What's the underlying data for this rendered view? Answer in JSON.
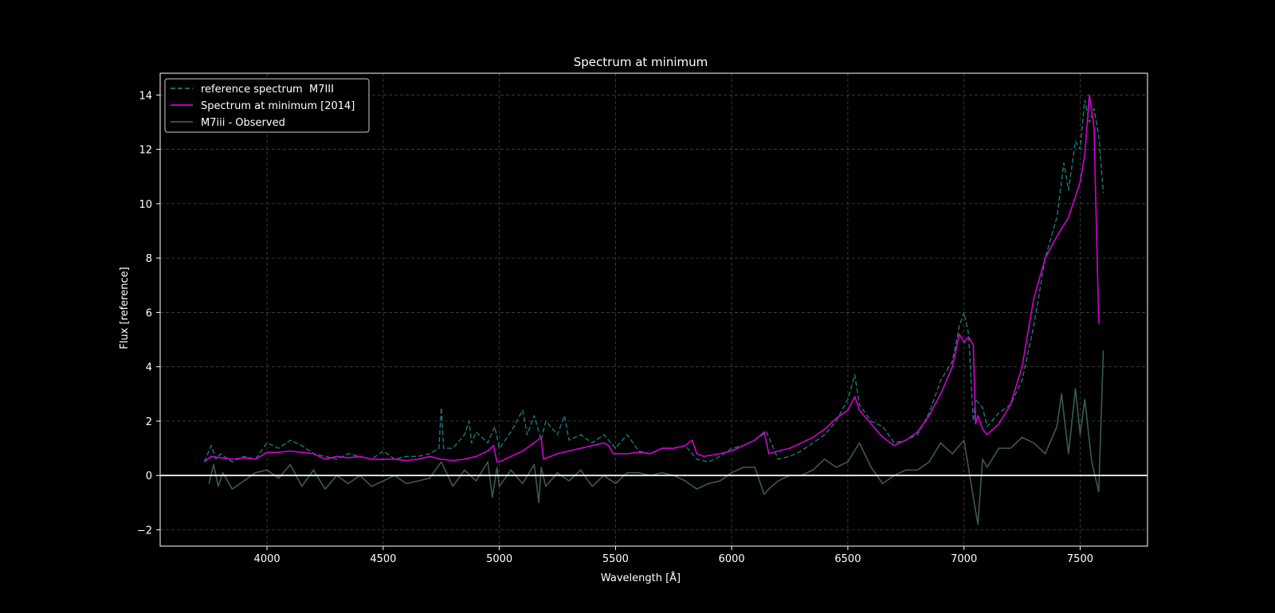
{
  "chart_data": {
    "type": "line",
    "title": "Spectrum at minimum",
    "xlabel": "Wavelength [Å]",
    "ylabel": "Flux [reference]",
    "xlim": [
      3540,
      7790
    ],
    "ylim": [
      -2.6,
      14.8
    ],
    "xticks": [
      4000,
      4500,
      5000,
      5500,
      6000,
      6500,
      7000,
      7500
    ],
    "yticks": [
      -2,
      0,
      2,
      4,
      6,
      8,
      10,
      12,
      14
    ],
    "grid": true,
    "legend_position": "top-left",
    "background": "#000000",
    "zero_line": 0,
    "series": [
      {
        "name": "reference spectrum  M7III",
        "color": "#1a7a7a",
        "style": "dashed",
        "x": [
          3730,
          3760,
          3780,
          3800,
          3850,
          3900,
          3950,
          4000,
          4050,
          4100,
          4150,
          4200,
          4250,
          4300,
          4350,
          4400,
          4450,
          4500,
          4550,
          4600,
          4650,
          4700,
          4740,
          4750,
          4760,
          4800,
          4850,
          4870,
          4880,
          4900,
          4950,
          4980,
          5000,
          5050,
          5100,
          5120,
          5150,
          5180,
          5200,
          5250,
          5280,
          5300,
          5350,
          5400,
          5450,
          5500,
          5550,
          5600,
          5650,
          5700,
          5750,
          5800,
          5850,
          5900,
          5950,
          6000,
          6050,
          6100,
          6150,
          6200,
          6250,
          6300,
          6350,
          6400,
          6450,
          6500,
          6530,
          6550,
          6600,
          6650,
          6700,
          6750,
          6800,
          6850,
          6900,
          6950,
          6980,
          7000,
          7020,
          7040,
          7050,
          7080,
          7100,
          7150,
          7200,
          7250,
          7300,
          7350,
          7400,
          7430,
          7450,
          7480,
          7500,
          7520,
          7540,
          7560,
          7580,
          7600
        ],
        "y": [
          0.5,
          1.1,
          0.6,
          0.8,
          0.5,
          0.7,
          0.6,
          1.2,
          1.0,
          1.3,
          1.1,
          0.8,
          0.7,
          0.6,
          0.8,
          0.7,
          0.6,
          0.9,
          0.6,
          0.7,
          0.7,
          0.8,
          1.0,
          2.5,
          1.0,
          1.0,
          1.5,
          2.0,
          1.2,
          1.6,
          1.2,
          1.8,
          1.0,
          1.6,
          2.4,
          1.5,
          2.2,
          1.3,
          2.0,
          1.5,
          2.2,
          1.3,
          1.5,
          1.2,
          1.5,
          1.0,
          1.5,
          0.9,
          0.8,
          1.0,
          1.0,
          1.1,
          0.6,
          0.5,
          0.7,
          1.0,
          1.1,
          1.3,
          1.6,
          0.6,
          0.7,
          0.9,
          1.2,
          1.5,
          2.0,
          2.8,
          3.7,
          2.6,
          2.0,
          1.8,
          1.2,
          1.3,
          1.5,
          2.3,
          3.5,
          4.2,
          5.5,
          6.0,
          5.2,
          2.0,
          2.8,
          2.5,
          1.8,
          2.3,
          2.6,
          3.5,
          5.5,
          8.0,
          9.5,
          11.5,
          10.5,
          12.3,
          12.0,
          13.8,
          13.0,
          13.5,
          12.5,
          10.4
        ]
      },
      {
        "name": "Spectrum at minimum [2014]",
        "color": "#d400d4",
        "style": "solid",
        "x": [
          3730,
          3760,
          3800,
          3850,
          3900,
          3950,
          4000,
          4050,
          4100,
          4150,
          4200,
          4250,
          4300,
          4350,
          4400,
          4450,
          4500,
          4550,
          4600,
          4650,
          4700,
          4750,
          4800,
          4850,
          4900,
          4950,
          4975,
          4990,
          5000,
          5050,
          5100,
          5150,
          5180,
          5190,
          5250,
          5300,
          5350,
          5400,
          5450,
          5470,
          5490,
          5550,
          5600,
          5650,
          5700,
          5750,
          5800,
          5830,
          5850,
          5880,
          5950,
          6000,
          6050,
          6100,
          6140,
          6160,
          6200,
          6250,
          6300,
          6350,
          6400,
          6450,
          6500,
          6530,
          6550,
          6600,
          6650,
          6700,
          6750,
          6800,
          6850,
          6900,
          6950,
          6980,
          7000,
          7020,
          7040,
          7050,
          7060,
          7080,
          7100,
          7150,
          7200,
          7250,
          7300,
          7350,
          7400,
          7450,
          7500,
          7520,
          7540,
          7560,
          7580
        ],
        "y": [
          0.5,
          0.7,
          0.65,
          0.6,
          0.65,
          0.6,
          0.85,
          0.85,
          0.9,
          0.85,
          0.8,
          0.6,
          0.7,
          0.65,
          0.7,
          0.6,
          0.6,
          0.6,
          0.55,
          0.6,
          0.7,
          0.6,
          0.55,
          0.6,
          0.7,
          0.9,
          1.1,
          0.5,
          0.5,
          0.7,
          0.9,
          1.2,
          1.4,
          0.6,
          0.8,
          0.9,
          1.0,
          1.1,
          1.2,
          1.1,
          0.8,
          0.8,
          0.85,
          0.8,
          1.0,
          1.0,
          1.1,
          1.3,
          0.8,
          0.7,
          0.8,
          0.9,
          1.1,
          1.3,
          1.6,
          0.8,
          0.9,
          1.0,
          1.2,
          1.4,
          1.7,
          2.1,
          2.4,
          2.9,
          2.4,
          1.9,
          1.4,
          1.1,
          1.3,
          1.6,
          2.2,
          3.0,
          4.0,
          5.2,
          4.9,
          5.1,
          4.8,
          1.9,
          2.2,
          1.7,
          1.5,
          1.9,
          2.6,
          4.0,
          6.5,
          8.0,
          8.8,
          9.5,
          10.8,
          11.8,
          14.0,
          12.8,
          5.6
        ]
      },
      {
        "name": "M7iii - Observed",
        "color": "#3a5a58",
        "style": "solid",
        "x": [
          3750,
          3770,
          3790,
          3810,
          3850,
          3900,
          3950,
          4000,
          4050,
          4100,
          4150,
          4200,
          4250,
          4300,
          4350,
          4400,
          4450,
          4500,
          4550,
          4600,
          4650,
          4700,
          4750,
          4800,
          4850,
          4900,
          4950,
          4970,
          4990,
          5000,
          5050,
          5100,
          5150,
          5170,
          5180,
          5200,
          5250,
          5300,
          5350,
          5400,
          5450,
          5500,
          5550,
          5600,
          5650,
          5700,
          5750,
          5800,
          5850,
          5900,
          5950,
          6000,
          6050,
          6100,
          6140,
          6160,
          6200,
          6250,
          6300,
          6350,
          6400,
          6450,
          6500,
          6550,
          6600,
          6650,
          6700,
          6750,
          6800,
          6850,
          6900,
          6950,
          7000,
          7040,
          7060,
          7080,
          7100,
          7150,
          7200,
          7250,
          7300,
          7350,
          7400,
          7420,
          7450,
          7480,
          7500,
          7520,
          7550,
          7580,
          7600
        ],
        "y": [
          -0.3,
          0.4,
          -0.4,
          0.1,
          -0.5,
          -0.2,
          0.1,
          0.2,
          -0.1,
          0.4,
          -0.4,
          0.2,
          -0.5,
          0.0,
          -0.3,
          0.0,
          -0.4,
          -0.2,
          0.0,
          -0.3,
          -0.2,
          -0.1,
          0.5,
          -0.4,
          0.2,
          -0.2,
          0.5,
          -0.8,
          0.3,
          -0.4,
          0.2,
          -0.3,
          0.4,
          -1.0,
          0.3,
          -0.4,
          0.1,
          -0.2,
          0.2,
          -0.4,
          0.0,
          -0.3,
          0.1,
          0.1,
          0.0,
          0.1,
          0.0,
          -0.2,
          -0.5,
          -0.3,
          -0.2,
          0.1,
          0.3,
          0.3,
          -0.7,
          -0.5,
          -0.2,
          0.0,
          0.0,
          0.2,
          0.6,
          0.3,
          0.5,
          1.2,
          0.3,
          -0.3,
          0.0,
          0.2,
          0.2,
          0.5,
          1.2,
          0.8,
          1.3,
          -0.8,
          -1.8,
          0.6,
          0.3,
          1.0,
          1.0,
          1.4,
          1.2,
          0.8,
          1.8,
          3.0,
          0.8,
          3.2,
          1.5,
          2.8,
          0.5,
          -0.6,
          4.6
        ]
      }
    ]
  }
}
